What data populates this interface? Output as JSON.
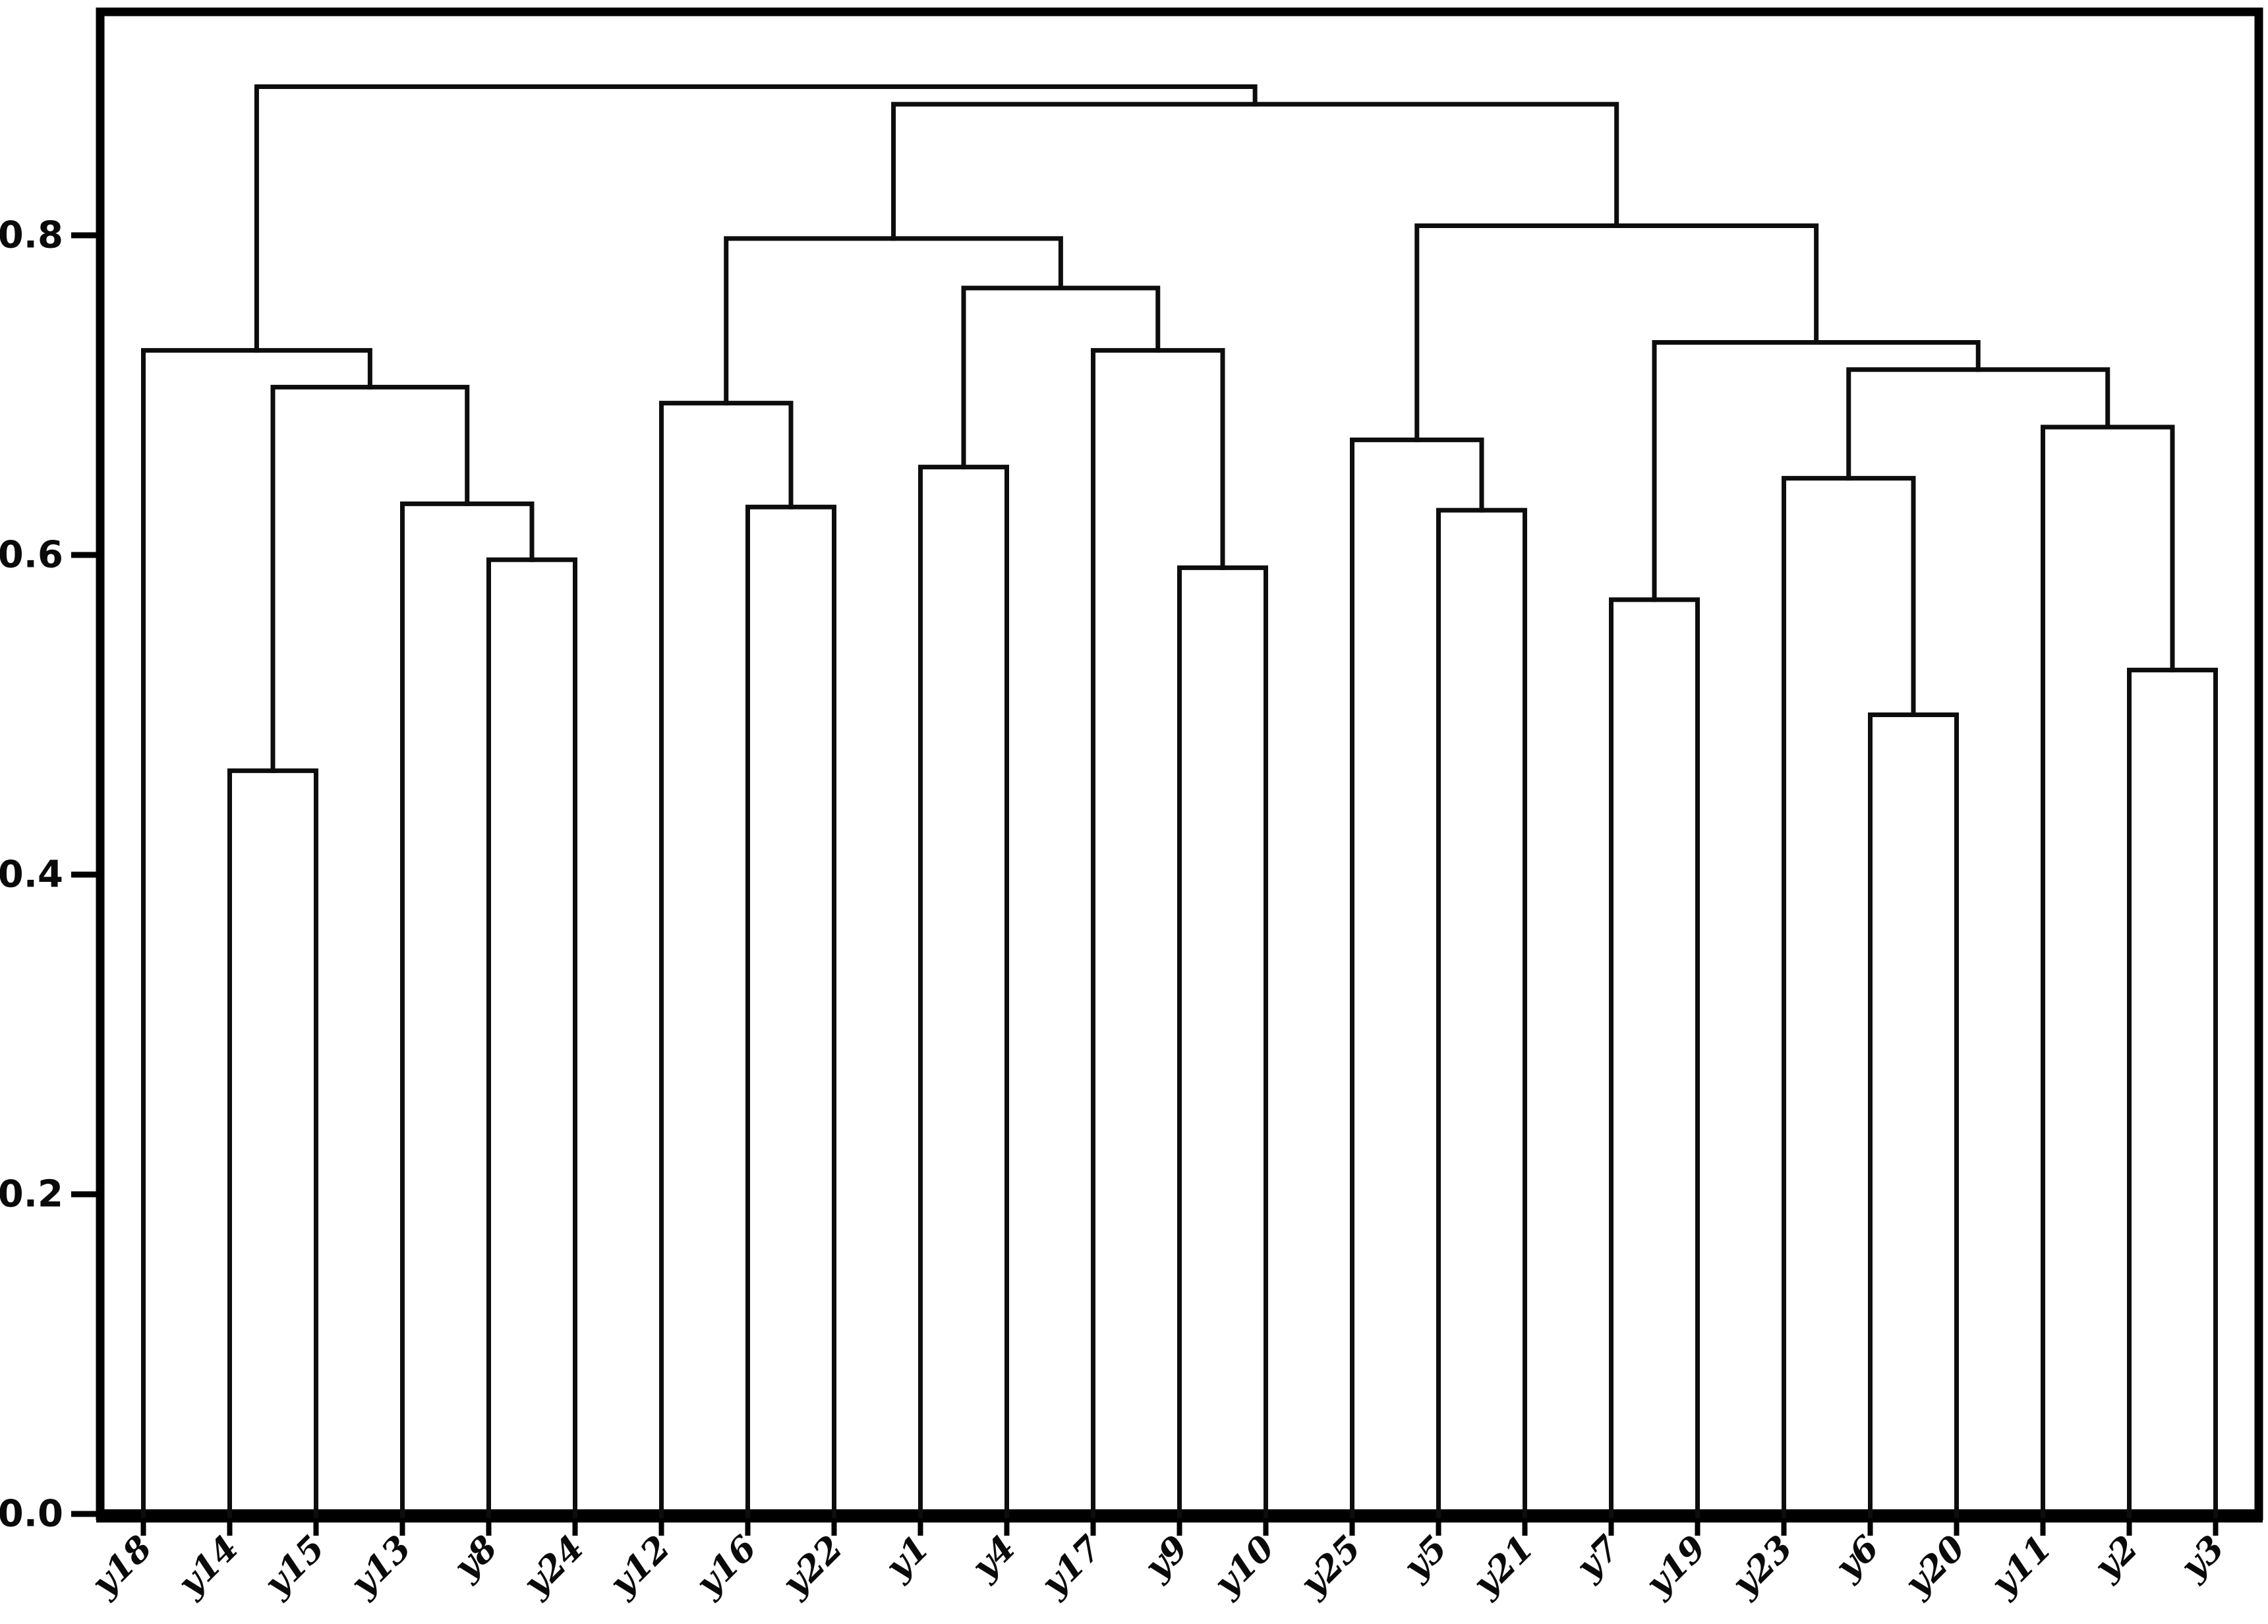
{
  "figure": {
    "background": "#ffffff",
    "line_color": "#0d0d0d",
    "axis_color": "#000000",
    "tick_label_color": "#0a0a0a"
  },
  "chart_data": {
    "type": "dendrogram",
    "title": "",
    "xlabel": "",
    "ylabel": "",
    "grid": false,
    "legend": null,
    "ylim": [
      0.0,
      0.94
    ],
    "yticks": [
      0.0,
      0.2,
      0.4,
      0.6,
      0.8
    ],
    "ytick_labels": [
      "0.0",
      "0.2",
      "0.4",
      "0.6",
      "0.8"
    ],
    "leaf_label_rotation_deg": 45,
    "leaves": [
      "y18",
      "y14",
      "y15",
      "y13",
      "y8",
      "y24",
      "y12",
      "y16",
      "y22",
      "y1",
      "y4",
      "y17",
      "y9",
      "y10",
      "y25",
      "y5",
      "y21",
      "y7",
      "y19",
      "y23",
      "y6",
      "y20",
      "y11",
      "y2",
      "y3"
    ],
    "linkage_tree": {
      "height": 0.893,
      "children": [
        {
          "height": 0.728,
          "children": [
            {
              "leaf": "y18"
            },
            {
              "height": 0.705,
              "children": [
                {
                  "height": 0.465,
                  "children": [
                    {
                      "leaf": "y14"
                    },
                    {
                      "leaf": "y15"
                    }
                  ]
                },
                {
                  "height": 0.632,
                  "children": [
                    {
                      "leaf": "y13"
                    },
                    {
                      "height": 0.597,
                      "children": [
                        {
                          "leaf": "y8"
                        },
                        {
                          "leaf": "y24"
                        }
                      ]
                    }
                  ]
                }
              ]
            }
          ]
        },
        {
          "height": 0.882,
          "children": [
            {
              "height": 0.798,
              "children": [
                {
                  "height": 0.695,
                  "children": [
                    {
                      "leaf": "y12"
                    },
                    {
                      "height": 0.63,
                      "children": [
                        {
                          "leaf": "y16"
                        },
                        {
                          "leaf": "y22"
                        }
                      ]
                    }
                  ]
                },
                {
                  "height": 0.767,
                  "children": [
                    {
                      "height": 0.655,
                      "children": [
                        {
                          "leaf": "y1"
                        },
                        {
                          "leaf": "y4"
                        }
                      ]
                    },
                    {
                      "height": 0.728,
                      "children": [
                        {
                          "leaf": "y17"
                        },
                        {
                          "height": 0.592,
                          "children": [
                            {
                              "leaf": "y9"
                            },
                            {
                              "leaf": "y10"
                            }
                          ]
                        }
                      ]
                    }
                  ]
                }
              ]
            },
            {
              "height": 0.806,
              "children": [
                {
                  "height": 0.672,
                  "children": [
                    {
                      "leaf": "y25"
                    },
                    {
                      "height": 0.628,
                      "children": [
                        {
                          "leaf": "y5"
                        },
                        {
                          "leaf": "y21"
                        }
                      ]
                    }
                  ]
                },
                {
                  "height": 0.733,
                  "children": [
                    {
                      "height": 0.572,
                      "children": [
                        {
                          "leaf": "y7"
                        },
                        {
                          "leaf": "y19"
                        }
                      ]
                    },
                    {
                      "height": 0.716,
                      "children": [
                        {
                          "height": 0.648,
                          "children": [
                            {
                              "leaf": "y23"
                            },
                            {
                              "height": 0.5,
                              "children": [
                                {
                                  "leaf": "y6"
                                },
                                {
                                  "leaf": "y20"
                                }
                              ]
                            }
                          ]
                        },
                        {
                          "height": 0.68,
                          "children": [
                            {
                              "leaf": "y11"
                            },
                            {
                              "height": 0.528,
                              "children": [
                                {
                                  "leaf": "y2"
                                },
                                {
                                  "leaf": "y3"
                                }
                              ]
                            }
                          ]
                        }
                      ]
                    }
                  ]
                }
              ]
            }
          ]
        }
      ]
    }
  }
}
